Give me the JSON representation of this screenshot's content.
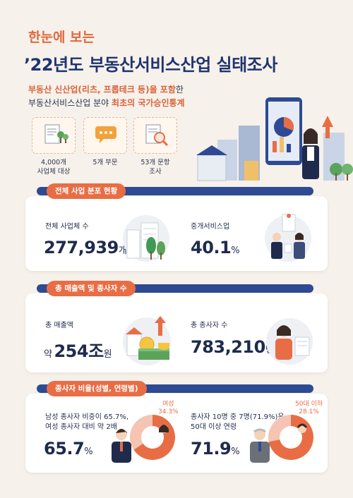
{
  "header": {
    "subtitle": "한눈에 보는",
    "title": "’22년도 부동산서비스산업 실태조사"
  },
  "intro": {
    "line1_highlight": "부동산 신산업(리츠, 프롭테크 등)을 포함",
    "line1_rest": "한",
    "line2_plain": "부동산서비스산업 분야 ",
    "line2_highlight": "최초의 국가승인통계"
  },
  "meta": [
    {
      "label1": "4,000개",
      "label2": "사업체 대상",
      "icon": "document-chart-icon"
    },
    {
      "label1": "5개 부문",
      "label2": "",
      "icon": "speech-bubble-icon"
    },
    {
      "label1": "53개 문항",
      "label2": "조사",
      "icon": "magnifier-document-icon"
    }
  ],
  "section1": {
    "title": "전체 사업 분포 현황",
    "left_label": "전체 사업체 수",
    "left_value": "277,939",
    "left_unit": "개",
    "right_label": "중개서비스업",
    "right_value": "40.1",
    "right_unit": "%"
  },
  "section2": {
    "title": "총 매출액 및 종사자 수",
    "left_label": "총 매출액",
    "left_prefix": "약",
    "left_value": "254조",
    "left_unit": "원",
    "right_label": "총 종사자 수",
    "right_value": "783,210",
    "right_unit": "명"
  },
  "section3": {
    "title": "종사자 비율(성별, 연령별)",
    "left_line1": "남성 종사자 비중이 65.7%,",
    "left_line2": "여성 종사자 대비 약 2배",
    "left_value": "65.7",
    "left_unit": "%",
    "left_note1": "여성",
    "left_note2": "34.3%",
    "left_share": 0.657,
    "right_line1": "종사자 10명 중 7명(71.9%)은",
    "right_line2": "50대 이상 연령",
    "right_value": "71.9",
    "right_unit": "%",
    "right_note1": "50대 이하",
    "right_note2": "28.1%",
    "right_share": 0.719
  },
  "colors": {
    "accent": "#e86d45",
    "navy": "#2d4a93",
    "background": "#f6f1ea"
  }
}
